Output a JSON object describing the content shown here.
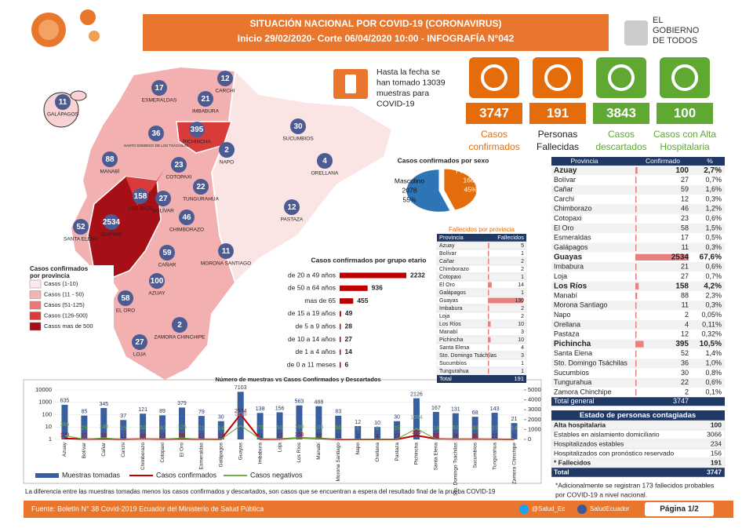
{
  "header": {
    "title": "SITUACIÓN NACIONAL POR  COVID-19 (CORONAVIRUS)",
    "subtitle": "Inicio 29/02/2020- Corte 06/04/2020 10:00  - INFOGRAFÍA N°042",
    "logo": [
      "EL",
      "GOBIERNO",
      "DE TODOS"
    ]
  },
  "tests_note": [
    "Hasta la fecha se",
    "han tomado 13039",
    "muestras  para",
    "COVID-19"
  ],
  "stats": [
    {
      "value": 3747,
      "label": [
        "Casos",
        "confirmados"
      ],
      "color": "#e46c0a",
      "text_color": "#e46c0a"
    },
    {
      "value": 191,
      "label": [
        "Personas",
        "Fallecidas"
      ],
      "color": "#e46c0a",
      "text_color": "#222222"
    },
    {
      "value": 3843,
      "label": [
        "Casos",
        "descartados"
      ],
      "color": "#5fa832",
      "text_color": "#5fa832"
    },
    {
      "value": 100,
      "label": [
        "Casos con Alta",
        "Hospitalaria"
      ],
      "color": "#5fa832",
      "text_color": "#5fa832"
    }
  ],
  "sex_chart": {
    "type": "pie",
    "title": "Casos confirmados por sexo",
    "categories": [
      "Masculino",
      "Femenino"
    ],
    "values": [
      2078,
      1669
    ],
    "percent_labels": [
      "55%",
      "45%"
    ],
    "colors": [
      "#2e75b6",
      "#e46c0a"
    ]
  },
  "age_chart": {
    "type": "bar",
    "title": "Casos confirmados por grupo etario",
    "categories": [
      "de 20 a 49 años",
      "de 50 a 64 años",
      "mas de 65",
      "de 15 a 19 años",
      "de 5 a 9 años",
      "de 10 a 14 años",
      "de 1 a 4 años",
      "de 0 a 11 meses"
    ],
    "values": [
      2232,
      936,
      455,
      49,
      28,
      27,
      14,
      6
    ],
    "color": "#c00000"
  },
  "deaths_table": {
    "title": "Fallecidos por provincia",
    "columns": [
      "Provincia",
      "Fallecidos"
    ],
    "rows": [
      [
        "Azuay",
        5
      ],
      [
        "Bolívar",
        1
      ],
      [
        "Cañar",
        2
      ],
      [
        "Chimborazo",
        2
      ],
      [
        "Cotopaxi",
        1
      ],
      [
        "El Oro",
        14
      ],
      [
        "Galápagos",
        1
      ],
      [
        "Guayas",
        130
      ],
      [
        "Imbabura",
        2
      ],
      [
        "Loja",
        2
      ],
      [
        "Los Ríos",
        10
      ],
      [
        "Manabí",
        3
      ],
      [
        "Pichincha",
        10
      ],
      [
        "Santa Elena",
        4
      ],
      [
        "Sto. Domingo Tsáchilas",
        3
      ],
      [
        "Sucumbíos",
        1
      ],
      [
        "Tungurahua",
        1
      ]
    ],
    "total": [
      "Total",
      191
    ]
  },
  "cases_table": {
    "columns": [
      "Provincia",
      "Confirmado",
      "%"
    ],
    "rows": [
      [
        "Azuay",
        100,
        "2,7%"
      ],
      [
        "Bolívar",
        27,
        "0,7%"
      ],
      [
        "Cañar",
        59,
        "1,6%"
      ],
      [
        "Carchi",
        12,
        "0,3%"
      ],
      [
        "Chimborazo",
        46,
        "1,2%"
      ],
      [
        "Cotopaxi",
        23,
        "0,6%"
      ],
      [
        "El Oro",
        58,
        "1,5%"
      ],
      [
        "Esmeraldas",
        17,
        "0,5%"
      ],
      [
        "Galápagos",
        11,
        "0,3%"
      ],
      [
        "Guayas",
        2534,
        "67,6%"
      ],
      [
        "Imbabura",
        21,
        "0,6%"
      ],
      [
        "Loja",
        27,
        "0,7%"
      ],
      [
        "Los Ríos",
        158,
        "4,2%"
      ],
      [
        "Manabí",
        88,
        "2,3%"
      ],
      [
        "Morona Santiago",
        11,
        "0,3%"
      ],
      [
        "Napo",
        2,
        "0,05%"
      ],
      [
        "Orellana",
        4,
        "0,11%"
      ],
      [
        "Pastaza",
        12,
        "0,32%"
      ],
      [
        "Pichincha",
        395,
        "10,5%"
      ],
      [
        "Santa Elena",
        52,
        "1,4%"
      ],
      [
        "Sto. Domingo Tsáchilas",
        36,
        "1,0%"
      ],
      [
        "Sucumbíos",
        30,
        "0,8%"
      ],
      [
        "Tungurahua",
        22,
        "0,6%"
      ],
      [
        "Zamora Chinchipe",
        2,
        "0,1%"
      ]
    ],
    "bold_rows": [
      0,
      9,
      12,
      18
    ],
    "total": [
      "Total general",
      3747
    ]
  },
  "status_table": {
    "title": "Estado de personas contagiadas",
    "rows": [
      [
        "Alta hospitalaria",
        100
      ],
      [
        "Estables en aislamiento domiciliario",
        3066
      ],
      [
        "Hospitalizados estables",
        234
      ],
      [
        "Hospitalizados con pronóstico reservado",
        156
      ],
      [
        "* Fallecidos",
        191
      ],
      [
        "Total",
        3747
      ]
    ]
  },
  "note": [
    "*Adicionalmente se registran 173 fallecidos probables",
    "por COVID-19 a nivel nacional."
  ],
  "map": {
    "legend_title": [
      "Casos confirmados",
      "por provincia"
    ],
    "legend": [
      {
        "label": "Casos (1-10)",
        "color": "#fdeaea"
      },
      {
        "label": "Casos (11 - 50)",
        "color": "#f4b4b4"
      },
      {
        "label": "Casos (51-125)",
        "color": "#ea7a7a"
      },
      {
        "label": "Casos (126-500)",
        "color": "#d93b3b"
      },
      {
        "label": "Casos mas de 500",
        "color": "#a50f15"
      }
    ],
    "names": [
      "AZUAY",
      "BOLÍVAR",
      "CAÑAR",
      "CARCHI",
      "CHIMBORAZO",
      "COTOPAXI",
      "EL ORO",
      "ESMERALDAS",
      "GALÁPAGOS",
      "GUAYAS",
      "IMBABURA",
      "LOJA",
      "LOS RÍOS",
      "MANABÍ",
      "MORONA SANTIAGO",
      "NAPO",
      "ORELLANA",
      "PASTAZA",
      "PICHINCHA",
      "SANTA ELENA",
      "SANTO DOMINGO DE LOS TSÁCHILAS",
      "SUCUMBIOS",
      "TUNGURAHUA",
      "ZAMORA CHINCHIPE"
    ]
  },
  "samples_chart": {
    "type": "bar-line",
    "title": "Número de muestras vs Casos Confirmados y Descartados",
    "categories": [
      "Azuay",
      "Bolívar",
      "Cañar",
      "Carchi",
      "Chimborazo",
      "Cotopaxi",
      "El Oro",
      "Esmeraldas",
      "Galápagos",
      "Guayas",
      "Imbabura",
      "Loja",
      "Los Ríos",
      "Manabí",
      "Morona Santiago",
      "Napo",
      "Orellana",
      "Pastaza",
      "Pichincha",
      "Santa Elena",
      "Sto. Domingo Tsáchilas",
      "Sucumbíos",
      "Tungurahua",
      "Zamora Chinchipe"
    ],
    "series": [
      {
        "name": "Muestras tomadas",
        "color": "#3a5fa0",
        "values": [
          635,
          85,
          345,
          37,
          121,
          89,
          379,
          79,
          30,
          7103,
          138,
          156,
          563,
          488,
          83,
          12,
          10,
          30,
          2126,
          167,
          131,
          68,
          143,
          21
        ]
      },
      {
        "name": "Casos confirmados",
        "color": "#c00000",
        "axis": "y2",
        "values": [
          100,
          27,
          59,
          12,
          46,
          23,
          58,
          17,
          11,
          2534,
          21,
          27,
          158,
          88,
          11,
          2,
          4,
          12,
          395,
          52,
          36,
          30,
          22,
          2
        ]
      },
      {
        "name": "Casos negativos",
        "color": "#70ad47",
        "axis": "y2",
        "values": [
          385,
          25,
          140,
          15,
          52,
          40,
          125,
          21,
          14,
          1399,
          70,
          50,
          160,
          106,
          56,
          6,
          6,
          15,
          1094,
          14,
          62,
          30,
          27,
          14
        ]
      }
    ],
    "ylim": [
      1,
      10000
    ],
    "yticks": [
      1,
      10,
      100,
      1000,
      10000
    ],
    "log": true,
    "y2lim": [
      0,
      5000
    ],
    "y2ticks": [
      0,
      1000,
      2000,
      3000,
      4000,
      5000
    ]
  },
  "footer": {
    "disclaimer": "La diferencia entre las muestras tomadas menos los casos confirmados y descartados, son casos que se encuentran a espera del resultado final de la prueba COVID-19",
    "source": "Fuente: Boletín N° 38 Covid-2019 Ecuador del Ministerio de Salud Pública",
    "twitter": "@Salud_Ec",
    "facebook": "SaludEcuador",
    "page": "Página 1/2"
  }
}
